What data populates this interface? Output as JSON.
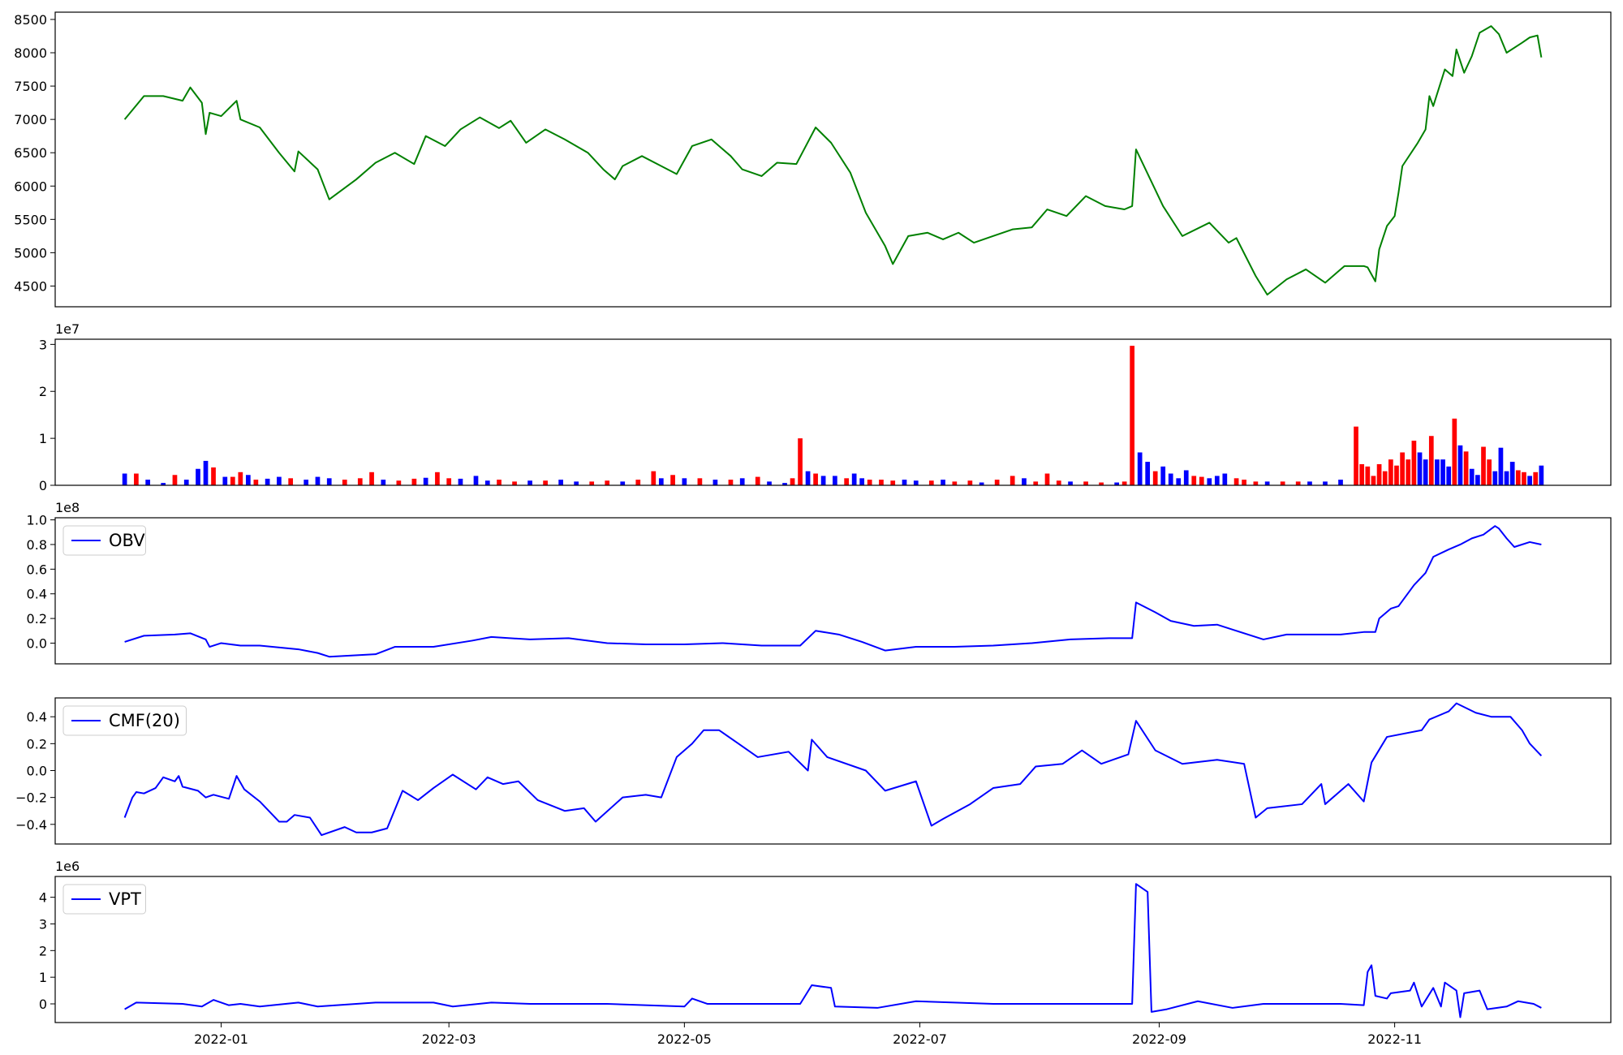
{
  "chart_data": [
    {
      "type": "line",
      "color": "#008000",
      "x": [
        -25,
        -20,
        -15,
        -10,
        -8,
        -5,
        -4,
        -3,
        0,
        4,
        5,
        10,
        15,
        19,
        20,
        25,
        28,
        35,
        40,
        45,
        50,
        53,
        58,
        62,
        67,
        72,
        75,
        79,
        84,
        89,
        95,
        99,
        102,
        104,
        109,
        114,
        118,
        122,
        127,
        132,
        135,
        140,
        144,
        149,
        154,
        158,
        163,
        167,
        172,
        174,
        178,
        183,
        187,
        191,
        195,
        200,
        205,
        210,
        214,
        219,
        224,
        229,
        234,
        236,
        237,
        244,
        249,
        256,
        261,
        263,
        268,
        271,
        276,
        281,
        286,
        291,
        296,
        297,
        299,
        300,
        302,
        304,
        305,
        306,
        310,
        312,
        313,
        314,
        317,
        319,
        320,
        322,
        324,
        326,
        329,
        331,
        333,
        337,
        339,
        341,
        342
      ],
      "values": [
        7000,
        7350,
        7350,
        7280,
        7480,
        7250,
        6780,
        7100,
        7050,
        7280,
        7000,
        6880,
        6500,
        6220,
        6520,
        6250,
        5800,
        6100,
        6350,
        6500,
        6330,
        6750,
        6600,
        6850,
        7030,
        6870,
        6980,
        6650,
        6850,
        6700,
        6500,
        6250,
        6100,
        6300,
        6450,
        6300,
        6180,
        6600,
        6700,
        6450,
        6250,
        6150,
        6350,
        6330,
        6880,
        6650,
        6200,
        5600,
        5100,
        4830,
        5250,
        5300,
        5200,
        5300,
        5150,
        5250,
        5350,
        5380,
        5650,
        5550,
        5850,
        5700,
        5650,
        5700,
        6550,
        5700,
        5250,
        5450,
        5150,
        5220,
        4650,
        4370,
        4600,
        4750,
        4550,
        4800,
        4800,
        4780,
        4570,
        5050,
        5400,
        5550,
        5900,
        6300,
        6650,
        6850,
        7350,
        7200,
        7750,
        7650,
        8050,
        7700,
        7950,
        8300,
        8400,
        8280,
        8000,
        8150,
        8230,
        8260,
        7930
      ],
      "xlim": [
        -43,
        360
      ],
      "ylim": [
        4189,
        8609
      ],
      "yticks": [
        4500,
        5000,
        5500,
        6000,
        6500,
        7000,
        7500,
        8000,
        8500
      ]
    },
    {
      "type": "bar",
      "offset_text": "1e7",
      "x": [
        -25,
        -22,
        -19,
        -15,
        -12,
        -9,
        -6,
        -4,
        -2,
        1,
        3,
        5,
        7,
        9,
        12,
        15,
        18,
        22,
        25,
        28,
        32,
        36,
        39,
        42,
        46,
        50,
        53,
        56,
        59,
        62,
        66,
        69,
        72,
        76,
        80,
        84,
        88,
        92,
        96,
        100,
        104,
        108,
        112,
        114,
        117,
        120,
        124,
        128,
        132,
        135,
        139,
        142,
        146,
        148,
        150,
        152,
        154,
        156,
        159,
        162,
        164,
        166,
        168,
        171,
        174,
        177,
        180,
        184,
        187,
        190,
        194,
        197,
        201,
        205,
        208,
        211,
        214,
        217,
        220,
        224,
        228,
        232,
        234,
        236,
        238,
        240,
        242,
        244,
        246,
        248,
        250,
        252,
        254,
        256,
        258,
        260,
        263,
        265,
        268,
        271,
        275,
        279,
        282,
        286,
        290,
        294,
        295.5,
        297,
        298.5,
        300,
        301.5,
        303,
        304.5,
        306,
        307.5,
        309,
        310.5,
        312,
        313.5,
        315,
        316.5,
        318,
        319.5,
        321,
        322.5,
        324,
        325.5,
        327,
        328.5,
        330,
        331.5,
        333,
        334.5,
        336,
        337.5,
        339,
        340.5,
        342
      ],
      "values": [
        0.25,
        0.25,
        0.12,
        0.05,
        0.22,
        0.12,
        0.35,
        0.52,
        0.38,
        0.18,
        0.18,
        0.28,
        0.22,
        0.12,
        0.14,
        0.18,
        0.15,
        0.12,
        0.18,
        0.15,
        0.12,
        0.15,
        0.28,
        0.12,
        0.1,
        0.14,
        0.16,
        0.28,
        0.15,
        0.14,
        0.2,
        0.1,
        0.12,
        0.08,
        0.1,
        0.1,
        0.12,
        0.08,
        0.08,
        0.1,
        0.08,
        0.12,
        0.3,
        0.15,
        0.22,
        0.15,
        0.15,
        0.12,
        0.12,
        0.15,
        0.18,
        0.08,
        0.05,
        0.15,
        1.0,
        0.3,
        0.25,
        0.2,
        0.2,
        0.15,
        0.25,
        0.15,
        0.12,
        0.12,
        0.1,
        0.12,
        0.1,
        0.1,
        0.12,
        0.08,
        0.1,
        0.06,
        0.12,
        0.2,
        0.15,
        0.08,
        0.25,
        0.1,
        0.08,
        0.08,
        0.06,
        0.06,
        0.08,
        2.97,
        0.7,
        0.5,
        0.3,
        0.4,
        0.25,
        0.15,
        0.32,
        0.2,
        0.18,
        0.15,
        0.2,
        0.25,
        0.15,
        0.12,
        0.08,
        0.08,
        0.08,
        0.08,
        0.08,
        0.08,
        0.12,
        1.25,
        0.45,
        0.4,
        0.2,
        0.45,
        0.3,
        0.55,
        0.42,
        0.7,
        0.55,
        0.95,
        0.7,
        0.55,
        1.05,
        0.55,
        0.55,
        0.4,
        1.42,
        0.85,
        0.72,
        0.35,
        0.22,
        0.82,
        0.55,
        0.3,
        0.8,
        0.3,
        0.5,
        0.32,
        0.28,
        0.2,
        0.28,
        0.42
      ],
      "colors": [
        "blue",
        "red",
        "blue",
        "blue",
        "red",
        "blue",
        "blue",
        "blue",
        "red",
        "blue",
        "red",
        "red",
        "blue",
        "red",
        "blue",
        "blue",
        "red",
        "blue",
        "blue",
        "blue",
        "red",
        "red",
        "red",
        "blue",
        "red",
        "red",
        "blue",
        "red",
        "red",
        "blue",
        "blue",
        "blue",
        "red",
        "red",
        "blue",
        "red",
        "blue",
        "blue",
        "red",
        "red",
        "blue",
        "red",
        "red",
        "blue",
        "red",
        "blue",
        "red",
        "blue",
        "red",
        "blue",
        "red",
        "blue",
        "blue",
        "red",
        "red",
        "blue",
        "red",
        "blue",
        "blue",
        "red",
        "blue",
        "blue",
        "red",
        "red",
        "red",
        "blue",
        "blue",
        "red",
        "blue",
        "red",
        "red",
        "blue",
        "red",
        "red",
        "blue",
        "red",
        "red",
        "red",
        "blue",
        "red",
        "red",
        "blue",
        "red",
        "red",
        "blue",
        "blue",
        "red",
        "blue",
        "blue",
        "blue",
        "blue",
        "red",
        "red",
        "blue",
        "blue",
        "blue",
        "red",
        "red",
        "red",
        "blue",
        "red",
        "red",
        "blue",
        "blue",
        "blue",
        "red",
        "red",
        "red",
        "red",
        "red",
        "red",
        "red",
        "red",
        "red",
        "red",
        "red",
        "blue",
        "blue",
        "red",
        "blue",
        "blue",
        "blue",
        "red",
        "blue",
        "red",
        "blue",
        "blue",
        "red",
        "red",
        "blue",
        "blue",
        "blue",
        "blue",
        "red",
        "red",
        "blue",
        "red",
        "blue"
      ],
      "xlim": [
        -43,
        360
      ],
      "ylim": [
        0,
        3.11
      ],
      "yticks": [
        0,
        1,
        2,
        3
      ]
    },
    {
      "type": "line",
      "offset_text": "1e8",
      "legend": "upper left",
      "x": [
        -25,
        -20,
        -12,
        -8,
        -4,
        -3,
        0,
        5,
        10,
        20,
        25,
        28,
        40,
        45,
        55,
        65,
        70,
        80,
        90,
        100,
        110,
        120,
        130,
        140,
        150,
        154,
        160,
        166,
        172,
        180,
        190,
        200,
        210,
        220,
        230,
        236,
        237,
        242,
        246,
        252,
        258,
        263,
        270,
        276,
        290,
        296,
        299,
        300,
        303,
        305,
        309,
        312,
        314,
        318,
        321,
        324,
        327,
        330,
        331,
        333,
        335,
        339,
        342
      ],
      "series": [
        {
          "name": "OBV",
          "color": "#0000ff",
          "values": [
            0.01,
            0.06,
            0.07,
            0.08,
            0.03,
            -0.03,
            0.0,
            -0.02,
            -0.02,
            -0.05,
            -0.08,
            -0.11,
            -0.09,
            -0.03,
            -0.03,
            0.02,
            0.05,
            0.03,
            0.04,
            0.0,
            -0.01,
            -0.01,
            0.0,
            -0.02,
            -0.02,
            0.1,
            0.07,
            0.01,
            -0.06,
            -0.03,
            -0.03,
            -0.02,
            0.0,
            0.03,
            0.04,
            0.04,
            0.33,
            0.25,
            0.18,
            0.14,
            0.15,
            0.1,
            0.03,
            0.07,
            0.07,
            0.09,
            0.09,
            0.2,
            0.28,
            0.3,
            0.47,
            0.57,
            0.7,
            0.76,
            0.8,
            0.85,
            0.88,
            0.95,
            0.93,
            0.85,
            0.78,
            0.82,
            0.8
          ]
        }
      ],
      "xlim": [
        -43,
        360
      ],
      "ylim": [
        -0.168,
        1.017
      ],
      "yticks": [
        {
          "value": 0,
          "label": "0.0"
        },
        {
          "value": 0.2,
          "label": "0.2"
        },
        {
          "value": 0.4,
          "label": "0.4"
        },
        {
          "value": 0.6,
          "label": "0.6"
        },
        {
          "value": 0.8,
          "label": "0.8"
        },
        {
          "value": 1,
          "label": "1.0"
        }
      ]
    },
    {
      "type": "line",
      "legend": "upper left",
      "x": [
        -25,
        -23,
        -22,
        -20,
        -17,
        -15,
        -12,
        -11,
        -10,
        -6,
        -4,
        -2,
        2,
        4,
        6,
        10,
        15,
        17,
        19,
        23,
        26,
        32,
        35,
        39,
        43,
        47,
        51,
        55,
        60,
        66,
        69,
        73,
        77,
        82,
        89,
        94,
        97,
        104,
        110,
        114,
        118,
        122,
        125,
        129,
        134,
        139,
        147,
        152,
        153,
        157,
        167,
        172,
        180,
        184,
        187,
        194,
        200,
        207,
        211,
        218,
        223,
        228,
        235,
        237,
        242,
        249,
        258,
        265,
        268,
        271,
        280,
        285,
        286,
        292,
        296,
        298,
        302,
        311,
        313,
        318,
        320,
        325,
        329,
        334,
        337,
        339,
        342
      ],
      "series": [
        {
          "name": "CMF(20)",
          "color": "#0000ff",
          "values": [
            -0.35,
            -0.2,
            -0.16,
            -0.17,
            -0.13,
            -0.05,
            -0.08,
            -0.04,
            -0.12,
            -0.15,
            -0.2,
            -0.18,
            -0.21,
            -0.04,
            -0.14,
            -0.23,
            -0.38,
            -0.38,
            -0.33,
            -0.35,
            -0.48,
            -0.42,
            -0.46,
            -0.46,
            -0.43,
            -0.15,
            -0.22,
            -0.13,
            -0.03,
            -0.14,
            -0.05,
            -0.1,
            -0.08,
            -0.22,
            -0.3,
            -0.28,
            -0.38,
            -0.2,
            -0.18,
            -0.2,
            0.1,
            0.2,
            0.3,
            0.3,
            0.2,
            0.1,
            0.14,
            0.0,
            0.23,
            0.1,
            0.0,
            -0.15,
            -0.08,
            -0.41,
            -0.36,
            -0.25,
            -0.13,
            -0.1,
            0.03,
            0.05,
            0.15,
            0.05,
            0.12,
            0.37,
            0.15,
            0.05,
            0.08,
            0.05,
            -0.35,
            -0.28,
            -0.25,
            -0.1,
            -0.25,
            -0.1,
            -0.23,
            0.06,
            0.25,
            0.3,
            0.38,
            0.44,
            0.5,
            0.43,
            0.4,
            0.4,
            0.3,
            0.2,
            0.11
          ]
        }
      ],
      "xlim": [
        -43,
        360
      ],
      "ylim": [
        -0.546,
        0.54
      ],
      "yticks": [
        {
          "value": -0.4,
          "label": "−0.4"
        },
        {
          "value": -0.2,
          "label": "−0.2"
        },
        {
          "value": 0,
          "label": "0.0"
        },
        {
          "value": 0.2,
          "label": "0.2"
        },
        {
          "value": 0.4,
          "label": "0.4"
        }
      ]
    },
    {
      "type": "line",
      "offset_text": "1e6",
      "legend": "upper left",
      "x": [
        -25,
        -22,
        -10,
        -5,
        -2,
        2,
        5,
        10,
        20,
        25,
        40,
        55,
        60,
        70,
        80,
        100,
        120,
        122,
        126,
        150,
        153,
        158,
        159,
        170,
        180,
        200,
        230,
        236,
        237,
        240,
        241,
        245,
        253,
        262,
        270,
        290,
        296,
        297,
        298,
        299,
        302,
        303,
        308,
        309,
        311,
        314,
        316,
        317,
        320,
        321,
        322,
        326,
        328,
        333,
        336,
        340,
        342
      ],
      "series": [
        {
          "name": "VPT",
          "color": "#0000ff",
          "values": [
            -0.2,
            0.05,
            0.0,
            -0.1,
            0.15,
            -0.05,
            0.0,
            -0.1,
            0.05,
            -0.1,
            0.05,
            0.05,
            -0.1,
            0.05,
            0.0,
            0.0,
            -0.1,
            0.2,
            0.0,
            0.0,
            0.7,
            0.6,
            -0.1,
            -0.15,
            0.1,
            0.0,
            0.0,
            0.0,
            4.5,
            4.2,
            -0.3,
            -0.2,
            0.1,
            -0.15,
            0.0,
            0.0,
            -0.05,
            1.2,
            1.45,
            0.3,
            0.2,
            0.4,
            0.5,
            0.8,
            -0.1,
            0.6,
            -0.1,
            0.8,
            0.5,
            -0.5,
            0.4,
            0.5,
            -0.2,
            -0.1,
            0.1,
            0.0,
            -0.15
          ]
        }
      ],
      "xlim": [
        -43,
        360
      ],
      "ylim": [
        -0.7,
        4.78
      ],
      "yticks": [
        0,
        1,
        2,
        3,
        4
      ],
      "xticks": [
        {
          "value": 0,
          "label": "2022-01"
        },
        {
          "value": 59,
          "label": "2022-03"
        },
        {
          "value": 120,
          "label": "2022-05"
        },
        {
          "value": 181,
          "label": "2022-07"
        },
        {
          "value": 243,
          "label": "2022-09"
        },
        {
          "value": 304,
          "label": "2022-11"
        }
      ]
    }
  ]
}
